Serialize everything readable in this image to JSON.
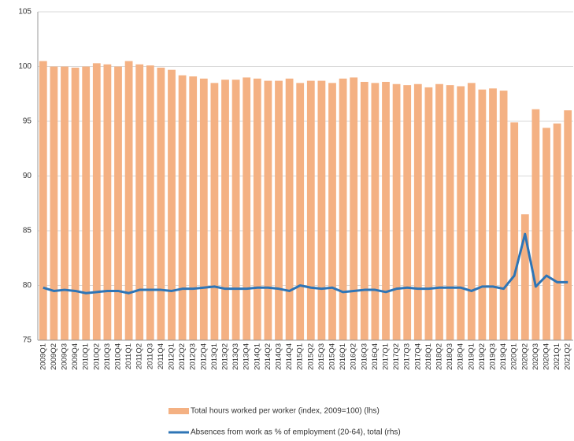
{
  "chart_data": {
    "type": "bar_line",
    "categories": [
      "2009Q1",
      "2009Q2",
      "2009Q3",
      "2009Q4",
      "2010Q1",
      "2010Q2",
      "2010Q3",
      "2010Q4",
      "2011Q1",
      "2011Q2",
      "2011Q3",
      "2011Q4",
      "2012Q1",
      "2012Q2",
      "2012Q3",
      "2012Q4",
      "2013Q1",
      "2013Q2",
      "2013Q3",
      "2013Q4",
      "2014Q1",
      "2014Q2",
      "2014Q3",
      "2014Q4",
      "2015Q1",
      "2015Q2",
      "2015Q3",
      "2015Q4",
      "2016Q1",
      "2016Q2",
      "2016Q3",
      "2016Q4",
      "2017Q1",
      "2017Q2",
      "2017Q3",
      "2017Q4",
      "2018Q1",
      "2018Q2",
      "2018Q3",
      "2018Q4",
      "2019Q1",
      "2019Q2",
      "2019Q3",
      "2019Q4",
      "2020Q1",
      "2020Q2",
      "2020Q3",
      "2020Q4",
      "2021Q1",
      "2021Q2"
    ],
    "series": [
      {
        "name": "Total hours worked per worker (index, 2009=100) (lhs)",
        "type": "bar",
        "color": "#f4b183",
        "values": [
          100.5,
          100.0,
          100.0,
          99.9,
          100.0,
          100.3,
          100.2,
          100.0,
          100.5,
          100.2,
          100.1,
          99.9,
          99.7,
          99.2,
          99.1,
          98.9,
          98.5,
          98.8,
          98.8,
          99.0,
          98.9,
          98.7,
          98.7,
          98.9,
          98.5,
          98.7,
          98.7,
          98.5,
          98.9,
          99.0,
          98.6,
          98.5,
          98.6,
          98.4,
          98.3,
          98.4,
          98.1,
          98.4,
          98.3,
          98.2,
          98.5,
          97.9,
          98.0,
          97.8,
          94.9,
          86.5,
          96.1,
          94.4,
          94.8,
          96.0
        ]
      },
      {
        "name": "Absences from work as % of employment (20-64), total (rhs)",
        "type": "line",
        "color": "#2e75b6",
        "values": [
          79.8,
          79.5,
          79.6,
          79.5,
          79.3,
          79.4,
          79.5,
          79.5,
          79.3,
          79.6,
          79.6,
          79.6,
          79.5,
          79.7,
          79.7,
          79.8,
          79.9,
          79.7,
          79.7,
          79.7,
          79.8,
          79.8,
          79.7,
          79.5,
          80.0,
          79.8,
          79.7,
          79.8,
          79.4,
          79.5,
          79.6,
          79.6,
          79.4,
          79.7,
          79.8,
          79.7,
          79.7,
          79.8,
          79.8,
          79.8,
          79.5,
          79.9,
          79.9,
          79.7,
          80.9,
          84.7,
          79.9,
          80.9,
          80.3,
          80.3
        ]
      }
    ],
    "ylim": [
      75,
      105
    ],
    "yticks": [
      75,
      80,
      85,
      90,
      95,
      100,
      105
    ],
    "grid": true
  }
}
